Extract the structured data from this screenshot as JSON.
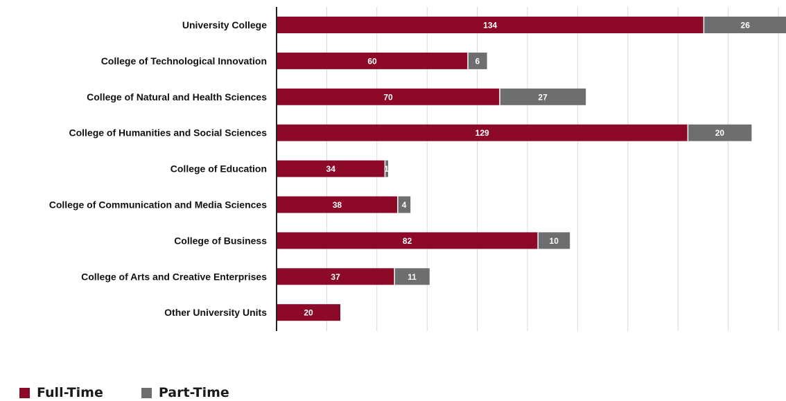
{
  "chart_data": {
    "type": "bar",
    "orientation": "horizontal",
    "stacked": true,
    "title": "",
    "xlabel": "",
    "ylabel": "",
    "xlim": [
      0,
      160
    ],
    "grid": true,
    "legend_position": "bottom-left",
    "categories": [
      "University College",
      "College of Technological Innovation",
      "College of Natural and Health Sciences",
      "College of Humanities and Social Sciences",
      "College of Education",
      "College of Communication and Media Sciences",
      "College of Business",
      "College of Arts and Creative Enterprises",
      "Other University Units"
    ],
    "series": [
      {
        "name": "Full-Time",
        "color": "#8c0a28",
        "values": [
          134,
          60,
          70,
          129,
          34,
          38,
          82,
          37,
          20
        ]
      },
      {
        "name": "Part-Time",
        "color": "#6d6e70",
        "values": [
          26,
          6,
          27,
          20,
          1,
          4,
          10,
          11,
          0
        ]
      }
    ]
  }
}
